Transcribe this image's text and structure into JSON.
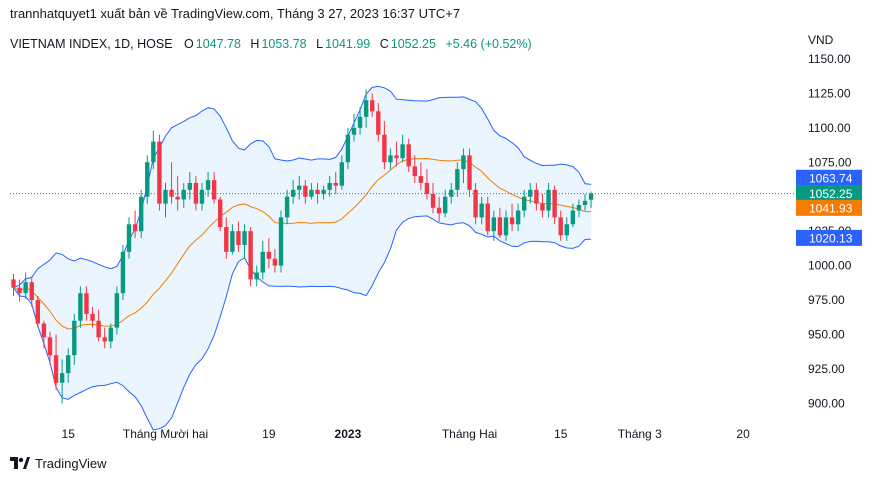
{
  "header": {
    "text": "trannhatquyet1 xuất bản về TradingView.com, Tháng 3 27, 2023 16:37 UTC+7"
  },
  "legend": {
    "symbol": "VIETNAM INDEX, 1D, HOSE",
    "open_label": "O",
    "open": "1047.78",
    "high_label": "H",
    "high": "1053.78",
    "low_label": "L",
    "low": "1041.99",
    "close_label": "C",
    "close": "1052.25",
    "change": "+5.46 (+0.52%)"
  },
  "footer": {
    "brand": "TradingView"
  },
  "colors": {
    "up": "#089981",
    "down": "#f23645",
    "band": "#2962ff",
    "basis": "#f57c00",
    "band_fill": "#e3f2fd"
  },
  "chart_data": {
    "type": "candlestick",
    "y_unit": "VND",
    "ylim": [
      888,
      1155
    ],
    "y_ticks": [
      "1150.00",
      "1125.00",
      "1100.00",
      "1075.00",
      "1050.00",
      "1025.00",
      "1000.00",
      "975.00",
      "950.00",
      "925.00",
      "900.00"
    ],
    "x_ticks": [
      {
        "i": 9,
        "label": "15",
        "bold": false
      },
      {
        "i": 25,
        "label": "Tháng Mười hai",
        "bold": false
      },
      {
        "i": 42,
        "label": "19",
        "bold": false
      },
      {
        "i": 55,
        "label": "2023",
        "bold": true
      },
      {
        "i": 75,
        "label": "Tháng Hai",
        "bold": false
      },
      {
        "i": 90,
        "label": "15",
        "bold": false
      },
      {
        "i": 103,
        "label": "Tháng 3",
        "bold": false
      },
      {
        "i": 120,
        "label": "20",
        "bold": false
      }
    ],
    "price_labels": [
      {
        "value": "1063.74",
        "color": "#2962ff"
      },
      {
        "value": "1052.25",
        "color": "#089981"
      },
      {
        "value": "1041.93",
        "color": "#f57c00"
      },
      {
        "value": "1020.13",
        "color": "#2962ff"
      }
    ],
    "last_close": 1052.25,
    "ohlc": [
      [
        990,
        994,
        978,
        984
      ],
      [
        984,
        990,
        974,
        980
      ],
      [
        980,
        995,
        976,
        988
      ],
      [
        988,
        992,
        970,
        975
      ],
      [
        975,
        978,
        955,
        958
      ],
      [
        958,
        960,
        940,
        948
      ],
      [
        948,
        952,
        928,
        935
      ],
      [
        935,
        950,
        910,
        915
      ],
      [
        915,
        932,
        900,
        922
      ],
      [
        922,
        940,
        915,
        935
      ],
      [
        935,
        965,
        928,
        960
      ],
      [
        960,
        985,
        955,
        980
      ],
      [
        980,
        985,
        960,
        965
      ],
      [
        965,
        970,
        955,
        960
      ],
      [
        960,
        968,
        945,
        948
      ],
      [
        948,
        955,
        940,
        945
      ],
      [
        945,
        958,
        940,
        955
      ],
      [
        955,
        985,
        950,
        980
      ],
      [
        980,
        1015,
        975,
        1010
      ],
      [
        1010,
        1035,
        1005,
        1030
      ],
      [
        1030,
        1040,
        1020,
        1025
      ],
      [
        1025,
        1055,
        1020,
        1050
      ],
      [
        1050,
        1080,
        1045,
        1075
      ],
      [
        1075,
        1098,
        1070,
        1090
      ],
      [
        1090,
        1095,
        1040,
        1045
      ],
      [
        1045,
        1060,
        1035,
        1055
      ],
      [
        1055,
        1075,
        1045,
        1050
      ],
      [
        1050,
        1065,
        1040,
        1048
      ],
      [
        1048,
        1060,
        1042,
        1055
      ],
      [
        1055,
        1068,
        1048,
        1060
      ],
      [
        1060,
        1065,
        1040,
        1045
      ],
      [
        1045,
        1060,
        1040,
        1055
      ],
      [
        1055,
        1068,
        1050,
        1062
      ],
      [
        1062,
        1068,
        1045,
        1048
      ],
      [
        1048,
        1050,
        1025,
        1028
      ],
      [
        1028,
        1035,
        1005,
        1010
      ],
      [
        1010,
        1030,
        1008,
        1025
      ],
      [
        1025,
        1032,
        1010,
        1015
      ],
      [
        1015,
        1030,
        1005,
        1025
      ],
      [
        1025,
        1028,
        985,
        990
      ],
      [
        990,
        1000,
        985,
        995
      ],
      [
        995,
        1018,
        990,
        1010
      ],
      [
        1010,
        1020,
        998,
        1005
      ],
      [
        1005,
        1012,
        995,
        1000
      ],
      [
        1000,
        1040,
        995,
        1035
      ],
      [
        1035,
        1055,
        1030,
        1050
      ],
      [
        1050,
        1062,
        1045,
        1055
      ],
      [
        1055,
        1065,
        1048,
        1058
      ],
      [
        1058,
        1062,
        1045,
        1050
      ],
      [
        1050,
        1060,
        1048,
        1055
      ],
      [
        1055,
        1060,
        1045,
        1052
      ],
      [
        1052,
        1058,
        1048,
        1055
      ],
      [
        1055,
        1065,
        1050,
        1060
      ],
      [
        1060,
        1068,
        1052,
        1058
      ],
      [
        1058,
        1080,
        1055,
        1075
      ],
      [
        1075,
        1100,
        1070,
        1095
      ],
      [
        1095,
        1110,
        1090,
        1100
      ],
      [
        1100,
        1115,
        1095,
        1108
      ],
      [
        1108,
        1128,
        1100,
        1120
      ],
      [
        1120,
        1125,
        1108,
        1112
      ],
      [
        1112,
        1118,
        1090,
        1095
      ],
      [
        1095,
        1105,
        1070,
        1075
      ],
      [
        1075,
        1085,
        1070,
        1080
      ],
      [
        1080,
        1090,
        1072,
        1078
      ],
      [
        1078,
        1095,
        1075,
        1088
      ],
      [
        1088,
        1092,
        1068,
        1072
      ],
      [
        1072,
        1080,
        1060,
        1065
      ],
      [
        1065,
        1075,
        1055,
        1060
      ],
      [
        1060,
        1070,
        1048,
        1052
      ],
      [
        1052,
        1060,
        1038,
        1042
      ],
      [
        1042,
        1050,
        1032,
        1038
      ],
      [
        1038,
        1055,
        1035,
        1050
      ],
      [
        1050,
        1060,
        1045,
        1055
      ],
      [
        1055,
        1075,
        1050,
        1070
      ],
      [
        1070,
        1085,
        1060,
        1080
      ],
      [
        1080,
        1085,
        1050,
        1055
      ],
      [
        1055,
        1060,
        1030,
        1035
      ],
      [
        1035,
        1050,
        1030,
        1045
      ],
      [
        1045,
        1050,
        1022,
        1025
      ],
      [
        1025,
        1040,
        1018,
        1035
      ],
      [
        1035,
        1042,
        1020,
        1022
      ],
      [
        1022,
        1040,
        1018,
        1035
      ],
      [
        1035,
        1045,
        1025,
        1030
      ],
      [
        1030,
        1045,
        1025,
        1040
      ],
      [
        1040,
        1055,
        1035,
        1050
      ],
      [
        1050,
        1060,
        1045,
        1055
      ],
      [
        1055,
        1060,
        1040,
        1045
      ],
      [
        1045,
        1052,
        1035,
        1040
      ],
      [
        1040,
        1060,
        1035,
        1055
      ],
      [
        1055,
        1058,
        1030,
        1035
      ],
      [
        1035,
        1040,
        1018,
        1022
      ],
      [
        1022,
        1035,
        1018,
        1030
      ],
      [
        1030,
        1045,
        1028,
        1040
      ],
      [
        1040,
        1048,
        1035,
        1044
      ],
      [
        1044,
        1052,
        1040,
        1047
      ],
      [
        1047.78,
        1053.78,
        1041.99,
        1052.25
      ]
    ]
  }
}
